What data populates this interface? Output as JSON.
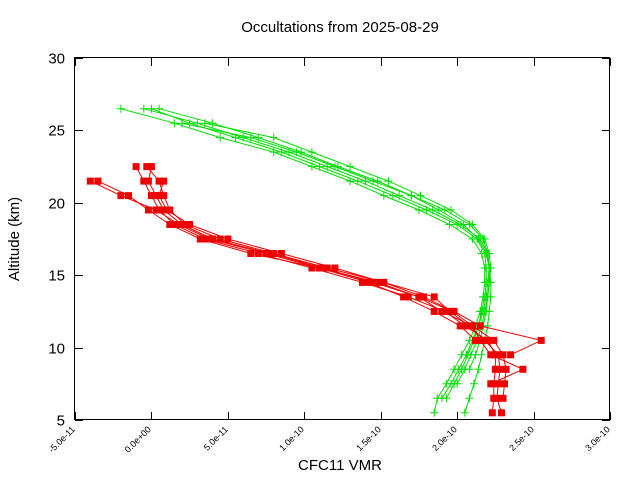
{
  "chart_data": {
    "type": "line",
    "title": "Occultations from 2025-08-29",
    "xlabel": "CFC11 VMR",
    "ylabel": "Altitude (km)",
    "xlim": [
      -5e-11,
      3e-10
    ],
    "ylim": [
      5,
      30
    ],
    "x_ticks": [
      -5e-11,
      0,
      5e-11,
      1e-10,
      1.5e-10,
      2e-10,
      2.5e-10,
      3e-10
    ],
    "x_tick_labels": [
      "-5.0e-11",
      "0.0e+00",
      "5.0e-11",
      "1.0e-10",
      "1.5e-10",
      "2.0e-10",
      "2.5e-10",
      "3.0e-10"
    ],
    "y_ticks": [
      5,
      10,
      15,
      20,
      25,
      30
    ],
    "y_tick_labels": [
      "5",
      "10",
      "15",
      "20",
      "25",
      "30"
    ],
    "grid": false,
    "legend": "none",
    "colors": {
      "green": "#00dd00",
      "red": "#ee0000"
    },
    "series": [
      {
        "color": "green",
        "marker": "plus",
        "altitude": [
          5.5,
          6.5,
          7.5,
          8.5,
          9.5,
          10.5,
          11.5,
          12.5,
          13.5,
          14.5,
          15.5,
          16.5,
          17.5,
          18.5,
          19.5,
          20.5,
          21.5,
          22.5,
          23.5,
          24.5,
          25.5,
          26.5
        ],
        "vmr": [
          1.85e-10,
          1.87e-10,
          1.93e-10,
          1.98e-10,
          2.03e-10,
          2.08e-10,
          2.12e-10,
          2.15e-10,
          2.17e-10,
          2.18e-10,
          2.18e-10,
          2.16e-10,
          2.1e-10,
          1.95e-10,
          1.75e-10,
          1.52e-10,
          1.3e-10,
          1.05e-10,
          8e-11,
          4.5e-11,
          1.5e-11,
          -2e-11
        ]
      },
      {
        "color": "green",
        "marker": "plus",
        "altitude": [
          6.5,
          7.5,
          8.5,
          9.5,
          10.5,
          11.5,
          12.5,
          13.5,
          14.5,
          15.5,
          16.5,
          17.5,
          18.5,
          19.5,
          20.5,
          21.5,
          22.5,
          23.5,
          24.5,
          25.5,
          26.5
        ],
        "vmr": [
          1.93e-10,
          1.98e-10,
          2.03e-10,
          2.07e-10,
          2.11e-10,
          2.14e-10,
          2.16e-10,
          2.18e-10,
          2.19e-10,
          2.19e-10,
          2.18e-10,
          2.13e-10,
          2e-10,
          1.8e-10,
          1.58e-10,
          1.35e-10,
          1.1e-10,
          8.5e-11,
          5.5e-11,
          2.5e-11,
          0
        ]
      },
      {
        "color": "green",
        "marker": "plus",
        "altitude": [
          7.5,
          8.5,
          9.5,
          10.5,
          11.5,
          12.5,
          13.5,
          14.5,
          15.5,
          16.5,
          17.5,
          18.5,
          19.5,
          20.5,
          21.5,
          22.5,
          23.5,
          24.5,
          25.5,
          26.5
        ],
        "vmr": [
          2e-10,
          2.05e-10,
          2.09e-10,
          2.13e-10,
          2.16e-10,
          2.18e-10,
          2.2e-10,
          2.21e-10,
          2.21e-10,
          2.2e-10,
          2.15e-10,
          2.02e-10,
          1.84e-10,
          1.62e-10,
          1.4e-10,
          1.15e-10,
          9e-11,
          6e-11,
          3e-11,
          -5e-12
        ]
      },
      {
        "color": "green",
        "marker": "plus",
        "altitude": [
          5.5,
          6.5,
          7.5,
          8.5,
          9.5,
          10.5,
          11.5,
          12.5,
          13.5,
          14.5,
          15.5,
          16.5,
          17.5,
          18.5,
          19.5,
          20.5,
          21.5,
          22.5,
          23.5,
          24.5,
          25.5
        ],
        "vmr": [
          2.05e-10,
          2.08e-10,
          2.11e-10,
          2.14e-10,
          2.16e-10,
          2.18e-10,
          2.2e-10,
          2.21e-10,
          2.22e-10,
          2.22e-10,
          2.21e-10,
          2.19e-10,
          2.14e-10,
          2.04e-10,
          1.88e-10,
          1.7e-10,
          1.45e-10,
          1.2e-10,
          9.5e-11,
          6.5e-11,
          2e-11
        ]
      },
      {
        "color": "green",
        "marker": "plus",
        "altitude": [
          6.5,
          7.5,
          8.5,
          9.5,
          10.5,
          11.5,
          12.5,
          13.5,
          14.5,
          15.5,
          16.5,
          17.5,
          18.5,
          19.5,
          20.5,
          21.5,
          22.5,
          23.5,
          24.5,
          25.5,
          26.5
        ],
        "vmr": [
          1.9e-10,
          1.96e-10,
          2.01e-10,
          2.06e-10,
          2.1e-10,
          2.14e-10,
          2.17e-10,
          2.19e-10,
          2.2e-10,
          2.21e-10,
          2.2e-10,
          2.17e-10,
          2.08e-10,
          1.92e-10,
          1.7e-10,
          1.48e-10,
          1.22e-10,
          9.8e-11,
          7e-11,
          4e-11,
          5e-12
        ]
      },
      {
        "color": "green",
        "marker": "plus",
        "altitude": [
          8.5,
          9.5,
          10.5,
          11.5,
          12.5,
          13.5,
          14.5,
          15.5,
          16.5,
          17.5,
          18.5,
          19.5,
          20.5,
          21.5,
          22.5,
          23.5,
          24.5,
          25.5
        ],
        "vmr": [
          2.08e-10,
          2.12e-10,
          2.15e-10,
          2.17e-10,
          2.19e-10,
          2.2e-10,
          2.21e-10,
          2.22e-10,
          2.21e-10,
          2.18e-10,
          2.1e-10,
          1.96e-10,
          1.76e-10,
          1.55e-10,
          1.3e-10,
          1.05e-10,
          8e-11,
          3.5e-11
        ]
      },
      {
        "color": "red",
        "marker": "square",
        "altitude": [
          5.5,
          6.5,
          7.5,
          8.5,
          9.5,
          10.5,
          11.5,
          12.5,
          13.5,
          14.5,
          15.5,
          16.5,
          17.5,
          18.5,
          19.5,
          20.5,
          21.5,
          22.5
        ],
        "vmr": [
          2.23e-10,
          2.24e-10,
          2.24e-10,
          2.25e-10,
          2.25e-10,
          2.2e-10,
          2.05e-10,
          1.92e-10,
          1.68e-10,
          1.38e-10,
          1.05e-10,
          7e-11,
          3.5e-11,
          1.5e-11,
          5e-12,
          0,
          -5e-12,
          -1e-11
        ]
      },
      {
        "color": "red",
        "marker": "square",
        "altitude": [
          6.5,
          7.5,
          8.5,
          9.5,
          10.5,
          11.5,
          12.5,
          13.5,
          14.5,
          15.5,
          16.5,
          17.5,
          18.5,
          19.5,
          20.5,
          21.5,
          22.5
        ],
        "vmr": [
          2.3e-10,
          2.31e-10,
          2.32e-10,
          2.3e-10,
          2.24e-10,
          2.1e-10,
          1.97e-10,
          1.75e-10,
          1.45e-10,
          1.12e-10,
          7.8e-11,
          4e-11,
          2e-11,
          8e-12,
          3e-12,
          -2e-12,
          0
        ]
      },
      {
        "color": "red",
        "marker": "square",
        "altitude": [
          9.5,
          10.5,
          11.5,
          12.5,
          13.5,
          14.5,
          15.5,
          16.5,
          17.5,
          18.5,
          19.5,
          20.5,
          21.5
        ],
        "vmr": [
          2.35e-10,
          2.55e-10,
          2.15e-10,
          1.98e-10,
          1.78e-10,
          1.52e-10,
          1.2e-10,
          8.5e-11,
          5e-11,
          2.5e-11,
          1e-11,
          5e-12,
          8e-12
        ]
      },
      {
        "color": "red",
        "marker": "square",
        "altitude": [
          5.5,
          6.5,
          7.5,
          8.5,
          9.5,
          10.5,
          11.5,
          12.5,
          13.5,
          14.5,
          15.5,
          16.5,
          17.5,
          18.5,
          19.5,
          20.5,
          21.5,
          22.5
        ],
        "vmr": [
          2.29e-10,
          2.26e-10,
          2.27e-10,
          2.28e-10,
          2.27e-10,
          2.18e-10,
          2.08e-10,
          1.95e-10,
          1.85e-10,
          1.52e-10,
          1.15e-10,
          8e-11,
          4.5e-11,
          2.2e-11,
          1.2e-11,
          8e-12,
          5e-12,
          -3e-12
        ]
      },
      {
        "color": "red",
        "marker": "square",
        "altitude": [
          7.5,
          8.5,
          9.5,
          10.5,
          11.5,
          12.5,
          13.5,
          14.5,
          15.5,
          16.5,
          17.5,
          18.5,
          19.5,
          20.5,
          21.5
        ],
        "vmr": [
          2.22e-10,
          2.43e-10,
          2.22e-10,
          2.15e-10,
          2.1e-10,
          1.9e-10,
          1.75e-10,
          1.48e-10,
          1.1e-10,
          6.5e-11,
          3.2e-11,
          1.2e-11,
          -2e-12,
          -1.5e-11,
          -3.5e-11
        ]
      },
      {
        "color": "red",
        "marker": "square",
        "altitude": [
          10.5,
          11.5,
          12.5,
          13.5,
          14.5,
          15.5,
          16.5,
          17.5,
          18.5,
          19.5,
          20.5,
          21.5
        ],
        "vmr": [
          2.12e-10,
          2.02e-10,
          1.85e-10,
          1.65e-10,
          1.42e-10,
          1.1e-10,
          7.5e-11,
          3.8e-11,
          1.8e-11,
          3e-12,
          -2e-11,
          -4e-11
        ]
      }
    ]
  }
}
